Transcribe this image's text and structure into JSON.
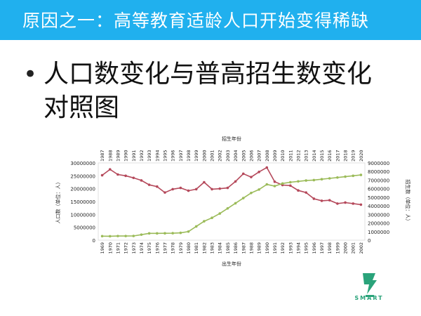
{
  "slide": {
    "title": "原因之一：高等教育适龄人口开始变得稀缺",
    "bullet": "人口数变化与普高招生数变化对照图",
    "logo_text": "SMART"
  },
  "colors": {
    "title_bar": "#20b0ee",
    "population_series": "#b5495b",
    "enrollment_series": "#9bbb59"
  },
  "chart_data": {
    "type": "line",
    "title": "",
    "top_axis_title": "招生年份",
    "bottom_axis_title": "出生年份",
    "ylabel_left": "人口数（单位：人）",
    "ylabel_right": "招生数（单位：人）",
    "x_birth_years": [
      "1969",
      "1970",
      "1971",
      "1972",
      "1973",
      "1974",
      "1975",
      "1976",
      "1977",
      "1978",
      "1979",
      "1980",
      "1981",
      "1982",
      "1983",
      "1984",
      "1985",
      "1986",
      "1987",
      "1988",
      "1989",
      "1990",
      "1991",
      "1992",
      "1993",
      "1994",
      "1995",
      "1996",
      "1997",
      "1998",
      "1999",
      "2000",
      "2001",
      "2002"
    ],
    "x_enroll_years": [
      "1987",
      "1988",
      "1989",
      "1990",
      "1991",
      "1992",
      "1993",
      "1994",
      "1995",
      "1996",
      "1997",
      "1998",
      "1999",
      "2000",
      "2001",
      "2002",
      "2003",
      "2004",
      "2005",
      "2006",
      "2007",
      "2008",
      "2009",
      "2010",
      "2011",
      "2012",
      "2013",
      "2014",
      "2015",
      "2016",
      "2017",
      "2018",
      "2019",
      "2020"
    ],
    "left_axis": {
      "min": 0,
      "max": 30000000,
      "ticks": [
        "0",
        "5000000",
        "10000000",
        "15000000",
        "20000000",
        "25000000",
        "30000000"
      ]
    },
    "right_axis": {
      "min": 0,
      "max": 9000000,
      "ticks": [
        "0",
        "1000000",
        "2000000",
        "3000000",
        "4000000",
        "5000000",
        "6000000",
        "7000000",
        "8000000",
        "9000000"
      ]
    },
    "series": [
      {
        "axis": "left",
        "color": "#b5495b",
        "values": [
          25200000,
          27500000,
          25500000,
          25000000,
          24200000,
          23200000,
          21500000,
          20800000,
          18500000,
          19800000,
          20300000,
          19200000,
          19800000,
          22500000,
          19800000,
          20000000,
          20300000,
          22800000,
          25800000,
          24500000,
          26500000,
          28200000,
          22700000,
          21400000,
          21200000,
          19300000,
          18500000,
          16100000,
          15300000,
          15500000,
          14200000,
          14600000,
          14200000,
          13800000
        ]
      },
      {
        "axis": "right",
        "color": "#9bbb59",
        "values": [
          470000,
          460000,
          480000,
          480000,
          490000,
          640000,
          790000,
          790000,
          800000,
          810000,
          850000,
          1000000,
          1600000,
          2200000,
          2600000,
          3100000,
          3700000,
          4300000,
          4900000,
          5500000,
          5900000,
          6500000,
          6300000,
          6600000,
          6750000,
          6850000,
          6950000,
          7000000,
          7100000,
          7200000,
          7300000,
          7400000,
          7500000,
          7600000
        ]
      }
    ]
  }
}
